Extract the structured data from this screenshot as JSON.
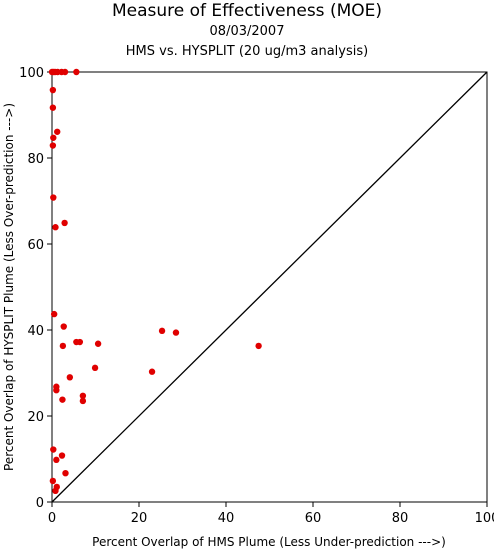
{
  "chart_data": {
    "type": "scatter",
    "title": "Measure of Effectiveness (MOE)",
    "subtitle_date": "08/03/2007",
    "subtitle": "HMS vs. HYSPLIT  (20 ug/m3 analysis)",
    "xlabel": "Percent Overlap of HMS Plume (Less Under-prediction --->)",
    "ylabel": "Percent Overlap of HYSPLIT Plume (Less Over-prediction --->)",
    "xlim": [
      0,
      100
    ],
    "ylim": [
      0,
      100
    ],
    "xticks": [
      0,
      20,
      40,
      60,
      80,
      100
    ],
    "yticks": [
      0,
      20,
      40,
      60,
      80,
      100
    ],
    "grid": false,
    "reference_line": "y = x",
    "point_color": "#e00000",
    "points": [
      {
        "x": 0.0,
        "y": 100
      },
      {
        "x": 0.3,
        "y": 100
      },
      {
        "x": 0.7,
        "y": 100
      },
      {
        "x": 1.3,
        "y": 100
      },
      {
        "x": 2.2,
        "y": 100
      },
      {
        "x": 3.0,
        "y": 100
      },
      {
        "x": 5.6,
        "y": 100
      },
      {
        "x": 0.2,
        "y": 95.8
      },
      {
        "x": 0.2,
        "y": 91.7
      },
      {
        "x": 1.2,
        "y": 86.1
      },
      {
        "x": 0.3,
        "y": 84.7
      },
      {
        "x": 0.2,
        "y": 82.9
      },
      {
        "x": 0.3,
        "y": 70.8
      },
      {
        "x": 2.9,
        "y": 64.9
      },
      {
        "x": 0.8,
        "y": 63.9
      },
      {
        "x": 0.5,
        "y": 43.7
      },
      {
        "x": 2.7,
        "y": 40.8
      },
      {
        "x": 25.3,
        "y": 39.8
      },
      {
        "x": 28.5,
        "y": 39.4
      },
      {
        "x": 5.6,
        "y": 37.2
      },
      {
        "x": 6.4,
        "y": 37.2
      },
      {
        "x": 10.6,
        "y": 36.8
      },
      {
        "x": 2.5,
        "y": 36.3
      },
      {
        "x": 47.5,
        "y": 36.3
      },
      {
        "x": 9.9,
        "y": 31.2
      },
      {
        "x": 23.0,
        "y": 30.3
      },
      {
        "x": 4.1,
        "y": 29.0
      },
      {
        "x": 1.0,
        "y": 26.8
      },
      {
        "x": 1.0,
        "y": 26.0
      },
      {
        "x": 7.1,
        "y": 24.7
      },
      {
        "x": 7.1,
        "y": 23.5
      },
      {
        "x": 2.4,
        "y": 23.8
      },
      {
        "x": 0.3,
        "y": 12.2
      },
      {
        "x": 2.3,
        "y": 10.8
      },
      {
        "x": 1.0,
        "y": 9.8
      },
      {
        "x": 3.1,
        "y": 6.7
      },
      {
        "x": 0.2,
        "y": 4.9
      },
      {
        "x": 1.1,
        "y": 3.5
      },
      {
        "x": 0.8,
        "y": 2.6
      }
    ]
  }
}
